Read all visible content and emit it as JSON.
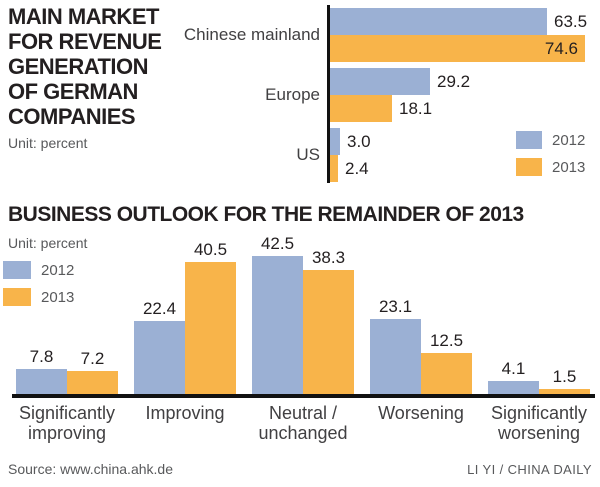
{
  "colors": {
    "series_2012": "#9bb0d4",
    "series_2013": "#f8b44a",
    "axis": "#111111",
    "title_text": "#231f20",
    "category_text": "#414042",
    "muted_text": "#58595b"
  },
  "top_chart": {
    "title_lines": [
      "MAIN MARKET",
      "FOR REVENUE",
      "GENERATION",
      "OF GERMAN",
      "COMPANIES"
    ],
    "unit_label": "Unit: percent",
    "legend": [
      {
        "label": "2012",
        "color": "#9bb0d4"
      },
      {
        "label": "2013",
        "color": "#f8b44a"
      }
    ]
  },
  "bottom_chart": {
    "title": "BUSINESS OUTLOOK FOR THE REMAINDER OF 2013",
    "unit_label": "Unit: percent",
    "legend": [
      {
        "label": "2012",
        "color": "#9bb0d4"
      },
      {
        "label": "2013",
        "color": "#f8b44a"
      }
    ]
  },
  "footer": {
    "source": "Source: www.china.ahk.de",
    "credit": "LI YI / CHINA DAILY"
  },
  "chart_data": [
    {
      "type": "bar",
      "orientation": "horizontal",
      "title": "MAIN MARKET FOR REVENUE GENERATION OF GERMAN COMPANIES",
      "unit": "percent",
      "categories": [
        "Chinese mainland",
        "Europe",
        "US"
      ],
      "series": [
        {
          "name": "2012",
          "color": "#9bb0d4",
          "values": [
            63.5,
            29.2,
            3.0
          ]
        },
        {
          "name": "2013",
          "color": "#f8b44a",
          "values": [
            74.6,
            18.1,
            2.4
          ]
        }
      ],
      "xlim": [
        0,
        78
      ],
      "grid": false,
      "legend_position": "bottom-right",
      "value_labels": true
    },
    {
      "type": "bar",
      "orientation": "vertical",
      "title": "BUSINESS OUTLOOK FOR THE REMAINDER OF 2013",
      "unit": "percent",
      "categories": [
        "Significantly improving",
        "Improving",
        "Neutral / unchanged",
        "Worsening",
        "Significantly worsening"
      ],
      "category_lines": [
        [
          "Significantly",
          "improving"
        ],
        [
          "Improving"
        ],
        [
          "Neutral /",
          "unchanged"
        ],
        [
          "Worsening"
        ],
        [
          "Significantly",
          "worsening"
        ]
      ],
      "series": [
        {
          "name": "2012",
          "color": "#9bb0d4",
          "values": [
            7.8,
            22.4,
            42.5,
            23.1,
            4.1
          ]
        },
        {
          "name": "2013",
          "color": "#f8b44a",
          "values": [
            7.2,
            40.5,
            38.3,
            12.5,
            1.5
          ]
        }
      ],
      "ylim": [
        0,
        45
      ],
      "grid": false,
      "legend_position": "top-left",
      "value_labels": true
    }
  ]
}
